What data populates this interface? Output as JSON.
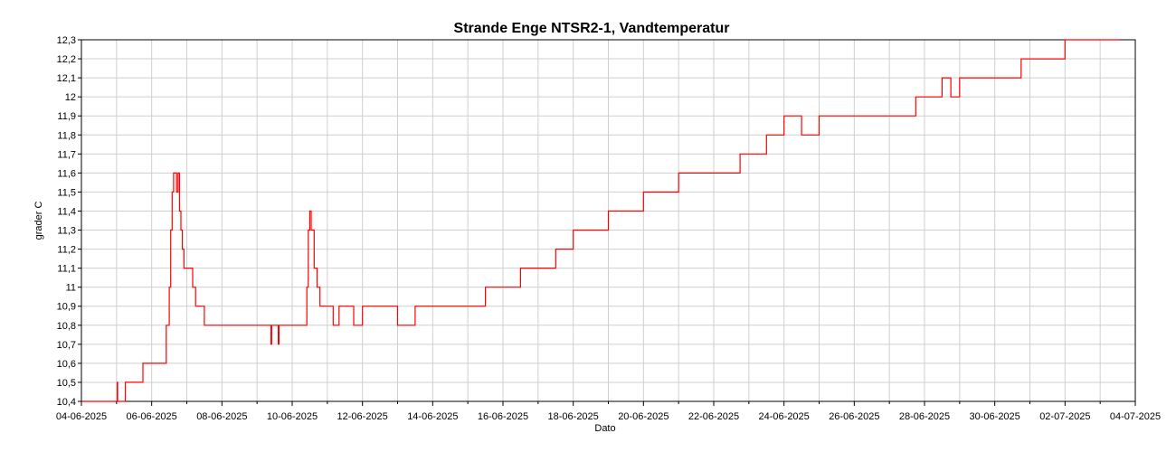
{
  "chart_data": {
    "type": "line",
    "title": "Strande Enge NTSR2-1, Vandtemperatur",
    "xlabel": "Dato",
    "ylabel": "grader C",
    "xlim": [
      "2025-06-04",
      "2025-07-04"
    ],
    "ylim": [
      10.4,
      12.3
    ],
    "y_ticks": [
      "10,4",
      "10,5",
      "10,6",
      "10,7",
      "10,8",
      "10,9",
      "11",
      "11,1",
      "11,2",
      "11,3",
      "11,4",
      "11,5",
      "11,6",
      "11,7",
      "11,8",
      "11,9",
      "12",
      "12,1",
      "12,2",
      "12,3"
    ],
    "x_ticks": [
      "04-06-2025",
      "06-06-2025",
      "08-06-2025",
      "10-06-2025",
      "12-06-2025",
      "14-06-2025",
      "16-06-2025",
      "18-06-2025",
      "20-06-2025",
      "22-06-2025",
      "24-06-2025",
      "26-06-2025",
      "28-06-2025",
      "30-06-2025",
      "02-07-2025",
      "04-07-2025"
    ],
    "grid": true,
    "line_color": "#ff0000",
    "series": [
      {
        "x": [
          "2025-06-04 00:00",
          "2025-06-05 00:00",
          "2025-06-05 00:30",
          "2025-06-05 00:45",
          "2025-06-05 06:00",
          "2025-06-05 12:00",
          "2025-06-05 14:00",
          "2025-06-05 16:00",
          "2025-06-05 18:00",
          "2025-06-06 06:00",
          "2025-06-06 08:00",
          "2025-06-06 10:00",
          "2025-06-06 12:00",
          "2025-06-06 13:00",
          "2025-06-06 14:00",
          "2025-06-06 15:00",
          "2025-06-06 16:00",
          "2025-06-06 17:00",
          "2025-06-06 18:00",
          "2025-06-06 19:00",
          "2025-06-06 20:00",
          "2025-06-06 21:00",
          "2025-06-06 22:00",
          "2025-06-07 00:00",
          "2025-06-07 04:00",
          "2025-06-07 06:00",
          "2025-06-07 10:00",
          "2025-06-07 12:00",
          "2025-06-07 16:00",
          "2025-06-07 18:00",
          "2025-06-09 09:00",
          "2025-06-09 09:30",
          "2025-06-09 10:00",
          "2025-06-09 14:00",
          "2025-06-09 14:30",
          "2025-06-09 15:00",
          "2025-06-10 09:00",
          "2025-06-10 10:00",
          "2025-06-10 11:00",
          "2025-06-10 12:00",
          "2025-06-10 13:00",
          "2025-06-10 15:00",
          "2025-06-10 17:00",
          "2025-06-10 19:00",
          "2025-06-11 00:00",
          "2025-06-11 04:00",
          "2025-06-11 08:00",
          "2025-06-11 10:00",
          "2025-06-11 18:00",
          "2025-06-12 00:00",
          "2025-06-12 18:00",
          "2025-06-13 00:00",
          "2025-06-13 12:00",
          "2025-06-14 00:00",
          "2025-06-15 00:00",
          "2025-06-15 06:00",
          "2025-06-15 12:00",
          "2025-06-15 18:00",
          "2025-06-16 00:00",
          "2025-06-16 12:00",
          "2025-06-16 18:00",
          "2025-06-17 00:00",
          "2025-06-17 12:00",
          "2025-06-17 18:00",
          "2025-06-18 00:00",
          "2025-06-18 12:00",
          "2025-06-18 18:00",
          "2025-06-19 00:00",
          "2025-06-19 12:00",
          "2025-06-19 18:00",
          "2025-06-20 00:00",
          "2025-06-20 12:00",
          "2025-06-20 18:00",
          "2025-06-21 00:00",
          "2025-06-22 00:00",
          "2025-06-22 12:00",
          "2025-06-22 18:00",
          "2025-06-23 00:00",
          "2025-06-23 12:00",
          "2025-06-23 18:00",
          "2025-06-24 00:00",
          "2025-06-24 12:00",
          "2025-06-25 00:00",
          "2025-06-26 00:00",
          "2025-06-27 00:00",
          "2025-06-27 12:00",
          "2025-06-27 18:00",
          "2025-06-28 00:00",
          "2025-06-28 12:00",
          "2025-06-28 18:00",
          "2025-06-29 00:00",
          "2025-06-30 00:00",
          "2025-06-30 12:00",
          "2025-06-30 18:00",
          "2025-07-01 00:00",
          "2025-07-01 12:00",
          "2025-07-01 18:00",
          "2025-07-02 00:00",
          "2025-07-02 12:00",
          "2025-07-03 00:00",
          "2025-07-03 06:00"
        ],
        "values": [
          10.4,
          10.4,
          10.5,
          10.4,
          10.5,
          10.5,
          10.5,
          10.5,
          10.6,
          10.6,
          10.6,
          10.8,
          11.0,
          11.3,
          11.5,
          11.6,
          11.6,
          11.5,
          11.6,
          11.4,
          11.3,
          11.2,
          11.1,
          11.1,
          11.0,
          10.9,
          10.9,
          10.8,
          10.8,
          10.8,
          10.8,
          10.7,
          10.8,
          10.8,
          10.7,
          10.8,
          10.8,
          11.0,
          11.3,
          11.4,
          11.3,
          11.1,
          11.0,
          10.9,
          10.9,
          10.8,
          10.9,
          10.9,
          10.8,
          10.9,
          10.9,
          10.8,
          10.9,
          10.9,
          10.9,
          10.9,
          11.0,
          11.0,
          11.0,
          11.1,
          11.1,
          11.1,
          11.2,
          11.2,
          11.3,
          11.3,
          11.3,
          11.4,
          11.4,
          11.4,
          11.5,
          11.5,
          11.5,
          11.6,
          11.6,
          11.6,
          11.7,
          11.7,
          11.8,
          11.8,
          11.9,
          11.8,
          11.9,
          11.9,
          11.9,
          11.9,
          12.0,
          12.0,
          12.1,
          12.0,
          12.1,
          12.1,
          12.1,
          12.2,
          12.2,
          12.2,
          12.2,
          12.3,
          12.3,
          12.3,
          12.3
        ]
      }
    ]
  }
}
